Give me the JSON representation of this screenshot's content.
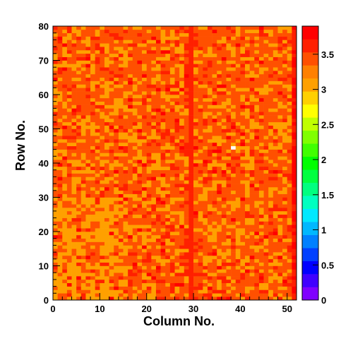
{
  "chart_data": {
    "type": "heatmap",
    "title": "",
    "xlabel": "Column No.",
    "ylabel": "Row No.",
    "xlim": [
      0,
      52
    ],
    "ylim": [
      0,
      80
    ],
    "zlim": [
      0,
      3.9
    ],
    "nx": 52,
    "ny": 80,
    "x_ticks": [
      0,
      10,
      20,
      30,
      40,
      50
    ],
    "y_ticks": [
      0,
      10,
      20,
      30,
      40,
      50,
      60,
      70,
      80
    ],
    "colorbar_ticks": [
      0,
      0.5,
      1,
      1.5,
      2,
      2.5,
      3,
      3.5
    ],
    "colorbar_tick_labels": [
      "0",
      "0.5",
      "1",
      "1.5",
      "2",
      "2.5",
      "3",
      "3.5"
    ],
    "typical_value": 3.4,
    "notable_cells": [
      {
        "column": 29,
        "rows": "0-79",
        "value": 3.6,
        "note": "darker orange vertical stripe"
      },
      {
        "column": 38,
        "row": 44,
        "value": 0,
        "note": "white cell (empty)"
      },
      {
        "column": 11,
        "rows": "3-30",
        "value": 3.1,
        "note": "yellow streak"
      },
      {
        "column": 4,
        "rows": "3-20",
        "value": 3.1,
        "note": "yellow streak"
      },
      {
        "column": 51,
        "rows": "0-80",
        "value": 3.7,
        "note": "reddish right edge column"
      }
    ],
    "palette": [
      "#8000ff",
      "#4000ff",
      "#0000ff",
      "#0040ff",
      "#0080ff",
      "#00b8ff",
      "#00e8ff",
      "#00ffc0",
      "#00ff80",
      "#00ff40",
      "#00ff00",
      "#40ff00",
      "#80ff00",
      "#c0ff00",
      "#ffff00",
      "#ffd000",
      "#ffa000",
      "#ff8000",
      "#ff5000",
      "#ff2000",
      "#ff0000"
    ],
    "grid": false,
    "legend": "colorbar-right"
  }
}
